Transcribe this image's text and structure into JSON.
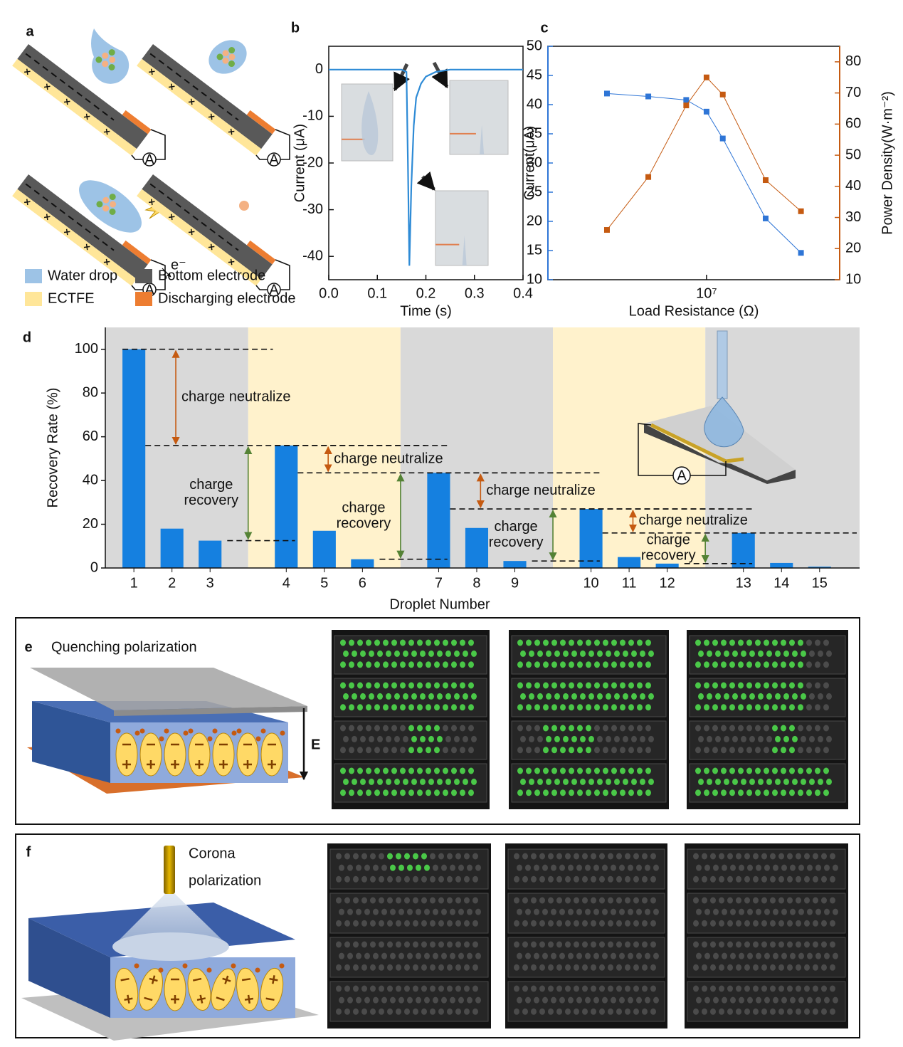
{
  "panel_labels": [
    "a",
    "b",
    "c",
    "d",
    "e",
    "f"
  ],
  "ammeter_label": "A",
  "panel_a": {
    "electron_label": "e⁻",
    "legend": [
      "Water drop",
      "Bottom electrode",
      "ECTFE",
      "Discharging electrode"
    ],
    "legend_colors": [
      "#9dc3e6",
      "#595959",
      "#ffe699",
      "#ed7d31"
    ]
  },
  "chart_data": [
    {
      "type": "line",
      "xlabel": "Time (s)",
      "ylabel": "Current (μA)",
      "x": [
        0,
        0.05,
        0.1,
        0.15,
        0.16,
        0.163,
        0.166,
        0.17,
        0.175,
        0.18,
        0.19,
        0.2,
        0.22,
        0.25,
        0.3,
        0.35,
        0.4
      ],
      "series": [
        {
          "color": "#2e8bd6",
          "values": [
            0,
            0,
            0,
            0,
            -0.5,
            -20,
            -42,
            -25,
            -12,
            -6,
            -3,
            -1.5,
            -0.5,
            0,
            0,
            0,
            0
          ]
        }
      ],
      "xlim": [
        0,
        0.4
      ],
      "xticks": [
        {
          "value": 0,
          "label": "0.0"
        },
        0.1,
        0.2,
        0.3,
        0.4
      ],
      "ylim": [
        -45,
        5
      ],
      "yticks": [
        -40,
        -30,
        -20,
        -10,
        0
      ]
    },
    {
      "type": "line",
      "xlabel": "Load Resistance (Ω)",
      "ylabel": "Current(μA)",
      "y2label": "Power Density(W·m⁻²)",
      "xscale": "log",
      "marker": "square",
      "x": [
        2000000,
        3900000,
        7200000,
        10000000,
        13000000,
        26000000,
        46000000
      ],
      "series": [
        {
          "color": "#2e75d6",
          "values": [
            41.9,
            41.4,
            40.8,
            38.8,
            34.2,
            20.5,
            14.6
          ]
        },
        {
          "color": "#c55a11",
          "axis": "y2",
          "values": [
            26,
            43,
            66,
            75,
            69.5,
            42,
            32
          ]
        }
      ],
      "xlim": [
        770000,
        86000000
      ],
      "xticks": [
        {
          "value": 10000000,
          "label": "10⁷"
        }
      ],
      "ylim": [
        10,
        50
      ],
      "yticks": [
        10,
        15,
        20,
        25,
        30,
        35,
        40,
        45,
        50
      ],
      "y2lim": [
        10,
        85
      ],
      "y2ticks": [
        10,
        20,
        30,
        40,
        50,
        60,
        70,
        80
      ]
    },
    {
      "type": "bar",
      "xlabel": "Droplet Number",
      "ylabel": "Recovery Rate (%)",
      "categories": [
        "1",
        "2",
        "3",
        null,
        "4",
        "5",
        "6",
        null,
        "7",
        "8",
        "9",
        null,
        "10",
        "11",
        "12",
        null,
        "13",
        "14",
        "15"
      ],
      "values": [
        100,
        18,
        12.5,
        null,
        56,
        17,
        4,
        null,
        43.5,
        18.3,
        3.2,
        null,
        27,
        5,
        2,
        null,
        16,
        2.3,
        0.6
      ],
      "color": "#1580e0",
      "band_colors": [
        "#d9d9d9",
        "#fff2cc"
      ],
      "ylim": [
        0,
        110
      ],
      "yticks": [
        0,
        20,
        40,
        60,
        80,
        100
      ],
      "neutralize_labels": [
        "charge neutralize",
        "charge neutralize",
        "charge neutralize",
        "charge neutralize"
      ],
      "recovery_labels": [
        [
          "charge",
          "recovery"
        ],
        [
          "charge",
          "recovery"
        ],
        [
          "charge",
          "recovery"
        ],
        [
          "charge",
          "recovery"
        ]
      ],
      "neutralize_color": "#c55a11",
      "recovery_color": "#548235"
    }
  ],
  "panel_e": {
    "title": "Quenching polarization",
    "field_label": "E"
  },
  "panel_f": {
    "title": [
      "Corona",
      "polarization"
    ]
  }
}
